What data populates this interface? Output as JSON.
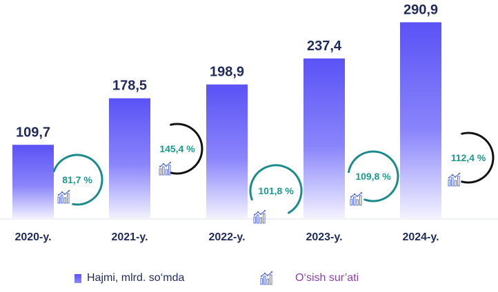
{
  "chart_data": {
    "type": "bar",
    "categories": [
      "2020-y.",
      "2021-y.",
      "2022-y.",
      "2023-y.",
      "2024-y."
    ],
    "series": [
      {
        "name": "Hajmi, mlrd. so‘mda",
        "values": [
          109.7,
          178.5,
          198.9,
          237.4,
          290.9
        ]
      }
    ],
    "value_labels": [
      "109,7",
      "178,5",
      "198,9",
      "237,4",
      "290,9"
    ],
    "growth_series": {
      "name": "O‘sish sur’ati",
      "values": [
        81.7,
        145.4,
        101.8,
        109.8,
        112.4
      ],
      "labels": [
        "81,7 %",
        "145,4 %",
        "101,8 %",
        "109,8 %",
        "112,4 %"
      ]
    },
    "ylim": [
      0,
      300
    ],
    "grid": false,
    "legend": "bottom"
  },
  "colors": {
    "bar_top": "#5a52f5",
    "bar_bottom": "#ffffff",
    "value_text": "#1f2a5a",
    "rate_text": "#1a9a8c",
    "ring_teal": "#1a8a8a",
    "ring_black": "#111111",
    "icon": "#5a6fd8",
    "legend2_text": "#8a3fa8"
  },
  "legend": {
    "volume_label": "Hajmi, mlrd. so‘mda",
    "growth_label": "O‘sish sur’ati",
    "growth_icon": "growth-chart-icon"
  }
}
